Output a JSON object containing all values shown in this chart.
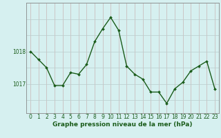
{
  "x": [
    0,
    1,
    2,
    3,
    4,
    5,
    6,
    7,
    8,
    9,
    10,
    11,
    12,
    13,
    14,
    15,
    16,
    17,
    18,
    19,
    20,
    21,
    22,
    23
  ],
  "y": [
    1018.0,
    1017.75,
    1017.5,
    1016.95,
    1016.95,
    1017.35,
    1017.3,
    1017.6,
    1018.3,
    1018.7,
    1019.05,
    1018.65,
    1017.55,
    1017.3,
    1017.15,
    1016.75,
    1016.75,
    1016.4,
    1016.85,
    1017.05,
    1017.4,
    1017.55,
    1017.7,
    1016.85
  ],
  "line_color": "#1a5c1a",
  "marker": "D",
  "marker_size": 2,
  "linewidth": 1.0,
  "bg_color": "#d6f0f0",
  "grid_color_v": "#c8b4b4",
  "grid_color_h": "#b8cccc",
  "xlabel": "Graphe pression niveau de la mer (hPa)",
  "xlabel_fontsize": 6.5,
  "xlabel_color": "#1a5c1a",
  "ytick_labels": [
    "1017",
    "1018"
  ],
  "ytick_values": [
    1017.0,
    1018.0
  ],
  "ylim": [
    1016.1,
    1019.5
  ],
  "xlim": [
    -0.5,
    23.5
  ],
  "tick_fontsize": 5.5,
  "tick_color": "#1a5c1a"
}
